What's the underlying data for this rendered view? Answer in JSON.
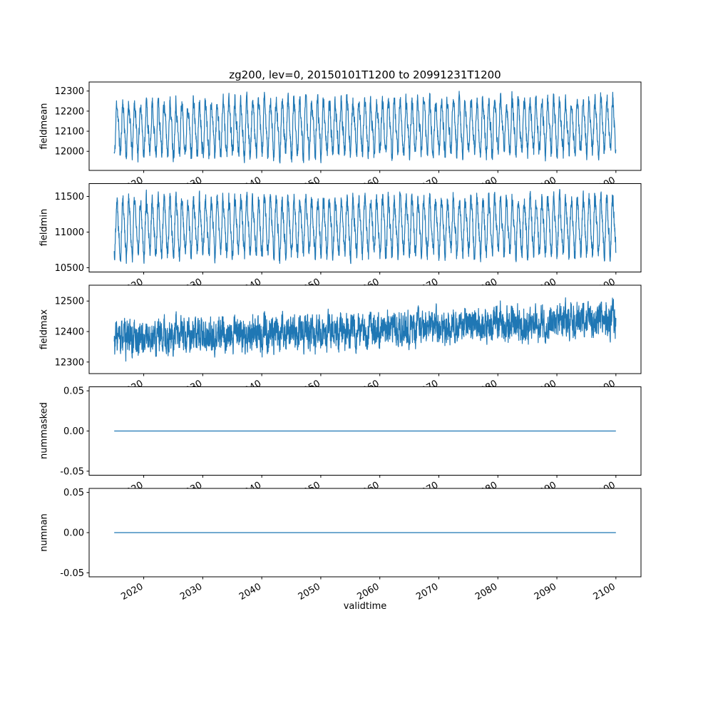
{
  "chart_data": {
    "type": "line",
    "title": "zg200, lev=0, 20150101T1200 to 20991231T1200",
    "xlabel": "validtime",
    "line_color": "#1f77b4",
    "frame_color": "#000000",
    "background_color": "#ffffff",
    "x_start": 2015.0,
    "x_end": 2100.0,
    "xlim": [
      2010.75,
      2104.25
    ],
    "points_per_series": 3061,
    "grid": false,
    "legend": "none",
    "xticks": [
      {
        "value": 2020,
        "label": "2020"
      },
      {
        "value": 2030,
        "label": "2030"
      },
      {
        "value": 2040,
        "label": "2040"
      },
      {
        "value": 2050,
        "label": "2050"
      },
      {
        "value": 2060,
        "label": "2060"
      },
      {
        "value": 2070,
        "label": "2070"
      },
      {
        "value": 2080,
        "label": "2080"
      },
      {
        "value": 2090,
        "label": "2090"
      },
      {
        "value": 2100,
        "label": "2100"
      }
    ],
    "subplots": [
      {
        "ylabel": "fieldmean",
        "ylim": [
          11905,
          12345
        ],
        "yticks": [
          {
            "value": 12300,
            "label": "12300"
          },
          {
            "value": 12200,
            "label": "12200"
          },
          {
            "value": 12100,
            "label": "12100"
          },
          {
            "value": 12000,
            "label": "12000"
          }
        ],
        "approx_min": 11950,
        "approx_max": 12310,
        "description": "Noisy annual oscillation of global-mean zg200, roughly 11950-12300 m, nearly stationary",
        "gen": {
          "seed": 11,
          "base": 12115,
          "trend": 12,
          "amp1": 120,
          "amp2": 25,
          "phase": 0.25,
          "noise": 35,
          "walk": 0.5
        }
      },
      {
        "ylabel": "fieldmin",
        "ylim": [
          10440,
          11680
        ],
        "yticks": [
          {
            "value": 11500,
            "label": "11500"
          },
          {
            "value": 11000,
            "label": "11000"
          },
          {
            "value": 10500,
            "label": "10500"
          }
        ],
        "approx_min": 10500,
        "approx_max": 11620,
        "description": "Strong noisy annual oscillation of field minimum, roughly 10500-11600 m",
        "gen": {
          "seed": 22,
          "base": 11070,
          "trend": 20,
          "amp1": 360,
          "amp2": 70,
          "phase": 0.25,
          "noise": 100,
          "walk": 0.4
        }
      },
      {
        "ylabel": "fieldmax",
        "ylim": [
          12262,
          12552
        ],
        "yticks": [
          {
            "value": 12500,
            "label": "12500"
          },
          {
            "value": 12400,
            "label": "12400"
          },
          {
            "value": 12300,
            "label": "12300"
          }
        ],
        "approx_min": 12270,
        "approx_max": 12540,
        "description": "High-frequency noise around a slowly rising mean, roughly 12370 rising to 12440 m",
        "gen": {
          "seed": 33,
          "base": 12375,
          "trend": 62,
          "amp1": 12,
          "amp2": 6,
          "phase": 0.25,
          "noise": 45,
          "walk": 0.45
        }
      },
      {
        "ylabel": "nummasked",
        "ylim": [
          -0.055,
          0.055
        ],
        "yticks": [
          {
            "value": 0.05,
            "label": "0.05"
          },
          {
            "value": 0.0,
            "label": "0.00"
          },
          {
            "value": -0.05,
            "label": "-0.05"
          }
        ],
        "approx_min": 0,
        "approx_max": 0,
        "description": "Constant zero line (no masked points)",
        "gen": {
          "seed": 44,
          "base": 0,
          "trend": 0,
          "amp1": 0,
          "amp2": 0,
          "phase": 0,
          "noise": 0,
          "walk": 0
        }
      },
      {
        "ylabel": "numnan",
        "ylim": [
          -0.055,
          0.055
        ],
        "yticks": [
          {
            "value": 0.05,
            "label": "0.05"
          },
          {
            "value": 0.0,
            "label": "0.00"
          },
          {
            "value": -0.05,
            "label": "-0.05"
          }
        ],
        "approx_min": 0,
        "approx_max": 0,
        "description": "Constant zero line (no NaN points)",
        "gen": {
          "seed": 55,
          "base": 0,
          "trend": 0,
          "amp1": 0,
          "amp2": 0,
          "phase": 0,
          "noise": 0,
          "walk": 0
        }
      }
    ]
  }
}
